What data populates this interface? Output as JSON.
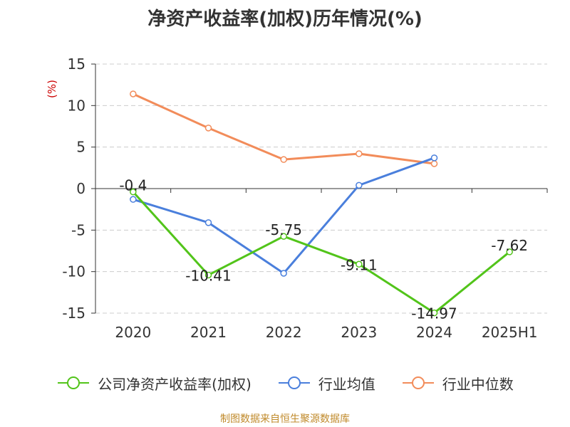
{
  "chart_data": {
    "type": "line",
    "title": "净资产收益率(加权)历年情况(%)",
    "ylabel": "(%)",
    "xlabel": "",
    "categories": [
      "2020",
      "2021",
      "2022",
      "2023",
      "2024",
      "2025H1"
    ],
    "ylim": [
      -15,
      15
    ],
    "yticks": [
      15,
      10,
      5,
      0,
      -5,
      -10,
      -15
    ],
    "grid": true,
    "legend_position": "bottom",
    "series": [
      {
        "name": "公司净资产收益率(加权)",
        "color": "#52c41a",
        "values": [
          -0.4,
          -10.41,
          -5.75,
          -9.11,
          -14.97,
          -7.62
        ],
        "labels": [
          "-0.4",
          "-10.41",
          "-5.75",
          "-9.11",
          "-14.97",
          "-7.62"
        ]
      },
      {
        "name": "行业均值",
        "color": "#4a7fdc",
        "values": [
          -1.3,
          -4.1,
          -10.2,
          0.4,
          3.7,
          null
        ]
      },
      {
        "name": "行业中位数",
        "color": "#f28c5a",
        "values": [
          11.4,
          7.3,
          3.5,
          4.2,
          3.0,
          null
        ]
      }
    ]
  },
  "footer": "制图数据来自恒生聚源数据库",
  "colors": {
    "axis": "#333333",
    "grid": "#cccccc",
    "ylabel": "#cc0000"
  }
}
